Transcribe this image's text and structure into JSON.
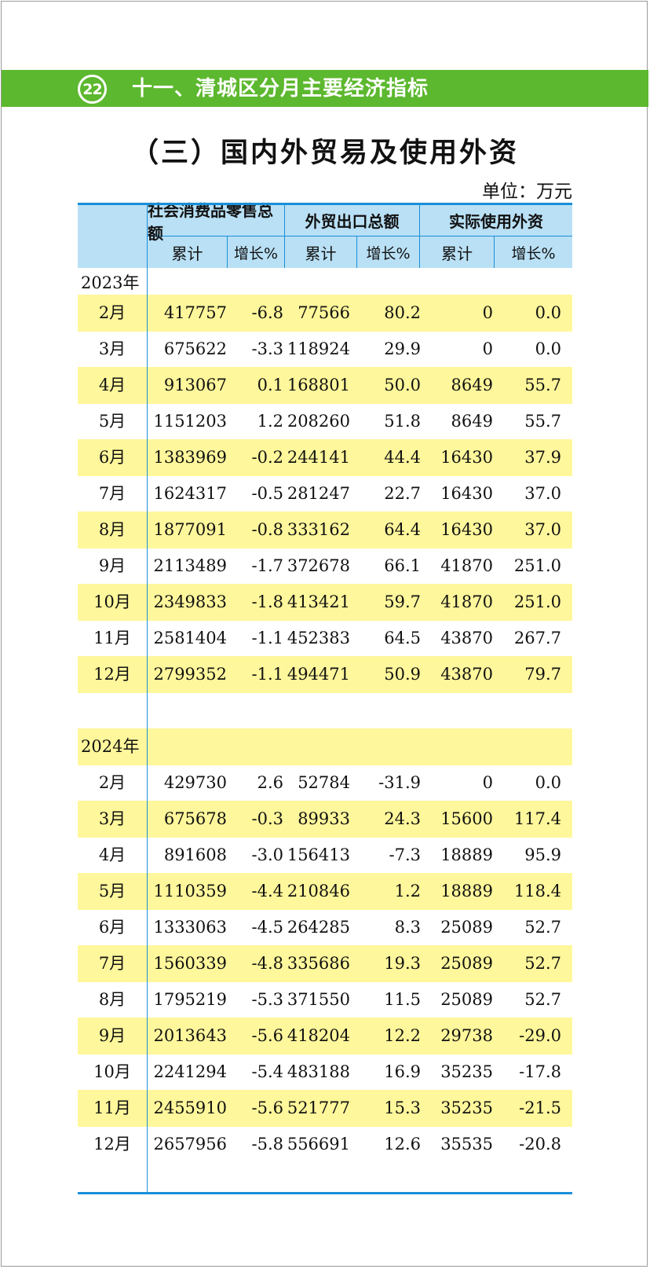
{
  "page_number": "22",
  "section_title": "十一、清城区分月主要经济指标",
  "page_title": "（三）国内外贸易及使用外资",
  "unit": "单位：万元",
  "colors": {
    "banner": "#5cb82e",
    "header_bg": "#b9e0f5",
    "highlight": "#fff79b",
    "rule": "#1a8fd8"
  },
  "header": {
    "groups": [
      "社会消费品零售总额",
      "外贸出口总额",
      "实际使用外资"
    ],
    "sub": [
      "累计",
      "增长%",
      "累计",
      "增长%",
      "累计",
      "增长%"
    ]
  },
  "year2023": {
    "label": "2023年",
    "rows": [
      [
        "2月",
        "417757",
        "-6.8",
        "77566",
        "80.2",
        "0",
        "0.0"
      ],
      [
        "3月",
        "675622",
        "-3.3",
        "118924",
        "29.9",
        "0",
        "0.0"
      ],
      [
        "4月",
        "913067",
        "0.1",
        "168801",
        "50.0",
        "8649",
        "55.7"
      ],
      [
        "5月",
        "1151203",
        "1.2",
        "208260",
        "51.8",
        "8649",
        "55.7"
      ],
      [
        "6月",
        "1383969",
        "-0.2",
        "244141",
        "44.4",
        "16430",
        "37.9"
      ],
      [
        "7月",
        "1624317",
        "-0.5",
        "281247",
        "22.7",
        "16430",
        "37.0"
      ],
      [
        "8月",
        "1877091",
        "-0.8",
        "333162",
        "64.4",
        "16430",
        "37.0"
      ],
      [
        "9月",
        "2113489",
        "-1.7",
        "372678",
        "66.1",
        "41870",
        "251.0"
      ],
      [
        "10月",
        "2349833",
        "-1.8",
        "413421",
        "59.7",
        "41870",
        "251.0"
      ],
      [
        "11月",
        "2581404",
        "-1.1",
        "452383",
        "64.5",
        "43870",
        "267.7"
      ],
      [
        "12月",
        "2799352",
        "-1.1",
        "494471",
        "50.9",
        "43870",
        "79.7"
      ]
    ]
  },
  "year2024": {
    "label": "2024年",
    "rows": [
      [
        "2月",
        "429730",
        "2.6",
        "52784",
        "-31.9",
        "0",
        "0.0"
      ],
      [
        "3月",
        "675678",
        "-0.3",
        "89933",
        "24.3",
        "15600",
        "117.4"
      ],
      [
        "4月",
        "891608",
        "-3.0",
        "156413",
        "-7.3",
        "18889",
        "95.9"
      ],
      [
        "5月",
        "1110359",
        "-4.4",
        "210846",
        "1.2",
        "18889",
        "118.4"
      ],
      [
        "6月",
        "1333063",
        "-4.5",
        "264285",
        "8.3",
        "25089",
        "52.7"
      ],
      [
        "7月",
        "1560339",
        "-4.8",
        "335686",
        "19.3",
        "25089",
        "52.7"
      ],
      [
        "8月",
        "1795219",
        "-5.3",
        "371550",
        "11.5",
        "25089",
        "52.7"
      ],
      [
        "9月",
        "2013643",
        "-5.6",
        "418204",
        "12.2",
        "29738",
        "-29.0"
      ],
      [
        "10月",
        "2241294",
        "-5.4",
        "483188",
        "16.9",
        "35235",
        "-17.8"
      ],
      [
        "11月",
        "2455910",
        "-5.6",
        "521777",
        "15.3",
        "35235",
        "-21.5"
      ],
      [
        "12月",
        "2657956",
        "-5.8",
        "556691",
        "12.6",
        "35535",
        "-20.8"
      ]
    ]
  }
}
